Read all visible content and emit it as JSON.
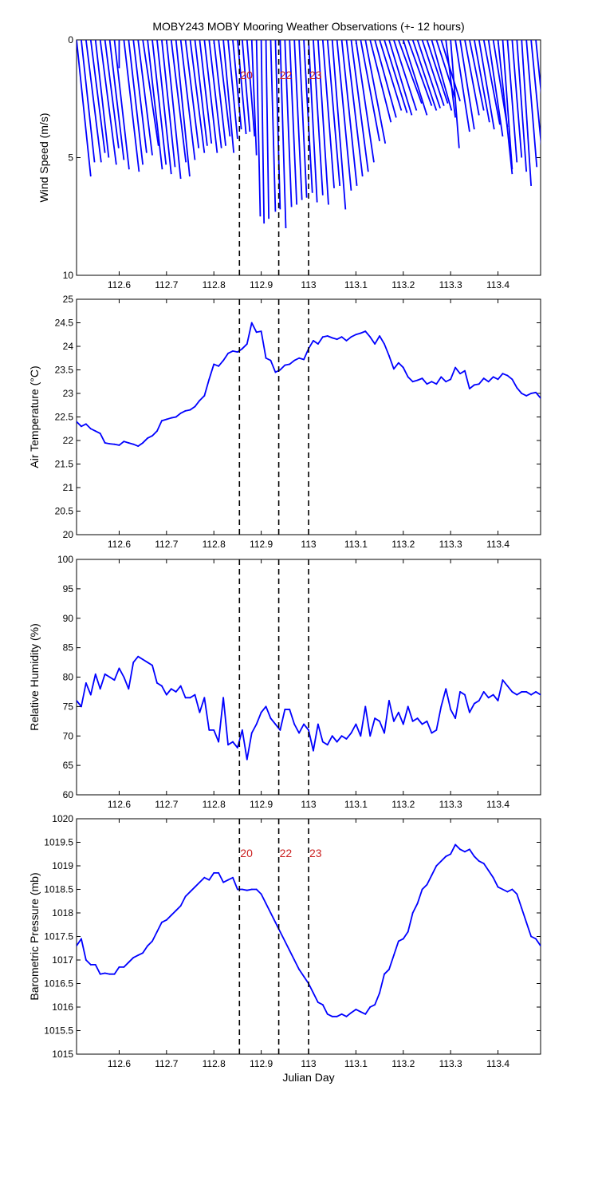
{
  "title": "MOBY243 MOBY Mooring Weather Observations (+- 12 hours)",
  "colors": {
    "series": "#0000ff",
    "event_label": "#cc2222",
    "axes": "#000000"
  },
  "event_lines": {
    "x": [
      112.854,
      112.937,
      113.0
    ],
    "labels": [
      "20",
      "22",
      "23"
    ],
    "style": "dashed"
  },
  "chart_data": [
    {
      "type": "quiver",
      "ylabel": "Wind Speed (m/s)",
      "xlim": [
        112.51,
        113.49
      ],
      "ylim": [
        0,
        10
      ],
      "y_reversed": true,
      "yticks": [
        0,
        5,
        10
      ],
      "xticks": [
        112.6,
        112.7,
        112.8,
        112.9,
        113,
        113.1,
        113.2,
        113.3,
        113.4
      ],
      "xticklabels": [
        "112.6",
        "112.7",
        "112.8",
        "112.9",
        "113",
        "113.1",
        "113.2",
        "113.3",
        "113.4"
      ],
      "event_labels_shown": true,
      "x": [
        112.51,
        112.52,
        112.53,
        112.54,
        112.55,
        112.56,
        112.57,
        112.58,
        112.59,
        112.6,
        112.61,
        112.62,
        112.63,
        112.64,
        112.65,
        112.66,
        112.67,
        112.68,
        112.69,
        112.7,
        112.71,
        112.72,
        112.73,
        112.74,
        112.75,
        112.76,
        112.77,
        112.78,
        112.79,
        112.8,
        112.81,
        112.82,
        112.83,
        112.84,
        112.85,
        112.86,
        112.87,
        112.88,
        112.89,
        112.9,
        112.91,
        112.92,
        112.93,
        112.94,
        112.95,
        112.96,
        112.97,
        112.98,
        112.99,
        113.0,
        113.01,
        113.02,
        113.03,
        113.04,
        113.05,
        113.06,
        113.07,
        113.08,
        113.09,
        113.1,
        113.11,
        113.12,
        113.13,
        113.14,
        113.15,
        113.16,
        113.17,
        113.18,
        113.19,
        113.2,
        113.21,
        113.22,
        113.23,
        113.24,
        113.25,
        113.26,
        113.27,
        113.28,
        113.29,
        113.3,
        113.31,
        113.32,
        113.33,
        113.34,
        113.35,
        113.36,
        113.37,
        113.38,
        113.39,
        113.4,
        113.41,
        113.42,
        113.43,
        113.44,
        113.45,
        113.46,
        113.47,
        113.48
      ],
      "speed": [
        5.8,
        5.2,
        5.2,
        4.8,
        5.0,
        5.3,
        4.6,
        5.1,
        5.5,
        1.2,
        5.6,
        5.3,
        4.8,
        4.9,
        4.5,
        5.5,
        5.3,
        5.7,
        5.4,
        5.9,
        5.2,
        5.8,
        5.1,
        4.6,
        4.8,
        4.5,
        4.4,
        4.8,
        4.6,
        4.5,
        4.1,
        4.8,
        4.2,
        3.8,
        4.0,
        3.9,
        4.1,
        4.9,
        7.5,
        7.8,
        7.6,
        7.3,
        7.2,
        8.0,
        7.1,
        7.0,
        6.8,
        6.7,
        6.5,
        6.9,
        6.6,
        7.0,
        6.3,
        6.2,
        7.2,
        6.4,
        6.2,
        5.8,
        5.6,
        5.2,
        4.3,
        4.4,
        3.5,
        3.3,
        3.0,
        3.1,
        3.2,
        3.0,
        2.7,
        3.2,
        2.8,
        3.0,
        2.9,
        2.8,
        2.7,
        3.0,
        2.5,
        2.6,
        3.3,
        4.6,
        3.9,
        3.8,
        3.2,
        3.0,
        3.5,
        3.8,
        3.6,
        4.1,
        3.7,
        5.7,
        5.5,
        5.2,
        5.0,
        5.6,
        6.2,
        5.4,
        5.0,
        4.8
      ],
      "dx_days": [
        0.03,
        0.028,
        0.032,
        0.03,
        0.028,
        0.034,
        0.029,
        0.03,
        0.031,
        0.0,
        0.032,
        0.03,
        0.028,
        0.03,
        0.033,
        0.031,
        0.029,
        0.03,
        0.028,
        0.03,
        0.031,
        0.029,
        0.03,
        0.028,
        0.03,
        0.026,
        0.025,
        0.027,
        0.026,
        0.025,
        0.024,
        0.022,
        0.02,
        0.018,
        0.018,
        0.016,
        0.016,
        0.01,
        0.008,
        0.006,
        0.006,
        0.01,
        0.01,
        0.012,
        0.014,
        0.015,
        0.016,
        0.016,
        0.018,
        0.018,
        0.02,
        0.022,
        0.024,
        0.026,
        0.028,
        0.03,
        0.032,
        0.034,
        0.036,
        0.038,
        0.04,
        0.042,
        0.044,
        0.045,
        0.046,
        0.048,
        0.048,
        0.048,
        0.049,
        0.05,
        0.05,
        0.05,
        0.048,
        0.046,
        0.044,
        0.042,
        0.04,
        0.04,
        0.02,
        0.018,
        0.03,
        0.03,
        0.03,
        0.03,
        0.032,
        0.032,
        0.034,
        0.03,
        0.03,
        0.03,
        0.02,
        0.02,
        0.02,
        0.02,
        0.02,
        0.022,
        0.024,
        0.024
      ]
    },
    {
      "type": "line",
      "ylabel": "Air Temperature (°C)",
      "xlim": [
        112.51,
        113.49
      ],
      "ylim": [
        20,
        25
      ],
      "yticks": [
        20,
        20.5,
        21,
        21.5,
        22,
        22.5,
        23,
        23.5,
        24,
        24.5,
        25
      ],
      "xticks": [
        112.6,
        112.7,
        112.8,
        112.9,
        113,
        113.1,
        113.2,
        113.3,
        113.4
      ],
      "xticklabels": [
        "112.6",
        "112.7",
        "112.8",
        "112.9",
        "113",
        "113.1",
        "113.2",
        "113.3",
        "113.4"
      ],
      "x": [
        112.51,
        112.52,
        112.53,
        112.54,
        112.55,
        112.56,
        112.57,
        112.58,
        112.59,
        112.6,
        112.61,
        112.62,
        112.63,
        112.64,
        112.65,
        112.66,
        112.67,
        112.68,
        112.69,
        112.7,
        112.71,
        112.72,
        112.73,
        112.74,
        112.75,
        112.76,
        112.77,
        112.78,
        112.79,
        112.8,
        112.81,
        112.82,
        112.83,
        112.84,
        112.85,
        112.86,
        112.87,
        112.88,
        112.89,
        112.9,
        112.91,
        112.92,
        112.93,
        112.94,
        112.95,
        112.96,
        112.97,
        112.98,
        112.99,
        113.0,
        113.01,
        113.02,
        113.03,
        113.04,
        113.05,
        113.06,
        113.07,
        113.08,
        113.09,
        113.1,
        113.11,
        113.12,
        113.13,
        113.14,
        113.15,
        113.16,
        113.17,
        113.18,
        113.19,
        113.2,
        113.21,
        113.22,
        113.23,
        113.24,
        113.25,
        113.26,
        113.27,
        113.28,
        113.29,
        113.3,
        113.31,
        113.32,
        113.33,
        113.34,
        113.35,
        113.36,
        113.37,
        113.38,
        113.39,
        113.4,
        113.41,
        113.42,
        113.43,
        113.44,
        113.45,
        113.46,
        113.47,
        113.48,
        113.49
      ],
      "y": [
        22.4,
        22.3,
        22.35,
        22.25,
        22.2,
        22.15,
        21.95,
        21.93,
        21.92,
        21.9,
        21.98,
        21.95,
        21.92,
        21.88,
        21.95,
        22.05,
        22.1,
        22.2,
        22.42,
        22.45,
        22.48,
        22.5,
        22.58,
        22.63,
        22.65,
        22.72,
        22.85,
        22.95,
        23.3,
        23.62,
        23.58,
        23.7,
        23.85,
        23.9,
        23.88,
        23.95,
        24.05,
        24.5,
        24.3,
        24.32,
        23.75,
        23.7,
        23.45,
        23.5,
        23.6,
        23.62,
        23.7,
        23.75,
        23.72,
        23.95,
        24.12,
        24.05,
        24.2,
        24.22,
        24.18,
        24.15,
        24.2,
        24.12,
        24.2,
        24.25,
        24.28,
        24.32,
        24.2,
        24.05,
        24.22,
        24.05,
        23.8,
        23.52,
        23.65,
        23.55,
        23.35,
        23.25,
        23.28,
        23.32,
        23.2,
        23.25,
        23.2,
        23.35,
        23.25,
        23.3,
        23.55,
        23.42,
        23.48,
        23.1,
        23.18,
        23.2,
        23.32,
        23.25,
        23.35,
        23.3,
        23.42,
        23.38,
        23.3,
        23.12,
        23.0,
        22.95,
        23.0,
        23.02,
        22.9
      ]
    },
    {
      "type": "line",
      "ylabel": "Relative Humidity (%)",
      "xlim": [
        112.51,
        113.49
      ],
      "ylim": [
        60,
        100
      ],
      "yticks": [
        60,
        65,
        70,
        75,
        80,
        85,
        90,
        95,
        100
      ],
      "xticks": [
        112.6,
        112.7,
        112.8,
        112.9,
        113,
        113.1,
        113.2,
        113.3,
        113.4
      ],
      "xticklabels": [
        "112.6",
        "112.7",
        "112.8",
        "112.9",
        "113",
        "113.1",
        "113.2",
        "113.3",
        "113.4"
      ],
      "x": [
        112.51,
        112.52,
        112.53,
        112.54,
        112.55,
        112.56,
        112.57,
        112.58,
        112.59,
        112.6,
        112.61,
        112.62,
        112.63,
        112.64,
        112.65,
        112.66,
        112.67,
        112.68,
        112.69,
        112.7,
        112.71,
        112.72,
        112.73,
        112.74,
        112.75,
        112.76,
        112.77,
        112.78,
        112.79,
        112.8,
        112.81,
        112.82,
        112.83,
        112.84,
        112.85,
        112.86,
        112.87,
        112.88,
        112.89,
        112.9,
        112.91,
        112.92,
        112.93,
        112.94,
        112.95,
        112.96,
        112.97,
        112.98,
        112.99,
        113.0,
        113.01,
        113.02,
        113.03,
        113.04,
        113.05,
        113.06,
        113.07,
        113.08,
        113.09,
        113.1,
        113.11,
        113.12,
        113.13,
        113.14,
        113.15,
        113.16,
        113.17,
        113.18,
        113.19,
        113.2,
        113.21,
        113.22,
        113.23,
        113.24,
        113.25,
        113.26,
        113.27,
        113.28,
        113.29,
        113.3,
        113.31,
        113.32,
        113.33,
        113.34,
        113.35,
        113.36,
        113.37,
        113.38,
        113.39,
        113.4,
        113.41,
        113.42,
        113.43,
        113.44,
        113.45,
        113.46,
        113.47,
        113.48,
        113.49
      ],
      "y": [
        76,
        75,
        79,
        77,
        80.5,
        78,
        80.5,
        80,
        79.5,
        81.5,
        80,
        78,
        82.5,
        83.5,
        83,
        82.5,
        82,
        79,
        78.5,
        77,
        78,
        77.5,
        78.5,
        76.5,
        76.5,
        77,
        74,
        76.5,
        71,
        71,
        69,
        76.5,
        68.5,
        69,
        68,
        71,
        66,
        70.5,
        72,
        74,
        75,
        73,
        72,
        71,
        74.5,
        74.5,
        72,
        70.5,
        72,
        71,
        67.5,
        72,
        69,
        68.5,
        70,
        69,
        70,
        69.5,
        70.5,
        72,
        70,
        75,
        70,
        73,
        72.5,
        70.5,
        76,
        72.5,
        74,
        72,
        75,
        72.5,
        73,
        72,
        72.5,
        70.5,
        71,
        75,
        78,
        74.5,
        73,
        77.5,
        77,
        74,
        75.5,
        76,
        77.5,
        76.5,
        77,
        76,
        79.5,
        78.5,
        77.5,
        77,
        77.5,
        77.5,
        77,
        77.5,
        77
      ]
    },
    {
      "type": "line",
      "ylabel": "Barometric Pressure (mb)",
      "xlabel": "Julian Day",
      "xlim": [
        112.51,
        113.49
      ],
      "ylim": [
        1015,
        1020
      ],
      "yticks": [
        1015,
        1015.5,
        1016,
        1016.5,
        1017,
        1017.5,
        1018,
        1018.5,
        1019,
        1019.5,
        1020
      ],
      "xticks": [
        112.6,
        112.7,
        112.8,
        112.9,
        113,
        113.1,
        113.2,
        113.3,
        113.4
      ],
      "xticklabels": [
        "112.6",
        "112.7",
        "112.8",
        "112.9",
        "113",
        "113.1",
        "113.2",
        "113.3",
        "113.4"
      ],
      "event_labels_shown": true,
      "x": [
        112.51,
        112.52,
        112.53,
        112.54,
        112.55,
        112.56,
        112.57,
        112.58,
        112.59,
        112.6,
        112.61,
        112.62,
        112.63,
        112.64,
        112.65,
        112.66,
        112.67,
        112.68,
        112.69,
        112.7,
        112.71,
        112.72,
        112.73,
        112.74,
        112.75,
        112.76,
        112.77,
        112.78,
        112.79,
        112.8,
        112.81,
        112.82,
        112.83,
        112.84,
        112.85,
        112.86,
        112.87,
        112.88,
        112.89,
        112.9,
        112.91,
        112.92,
        112.93,
        112.94,
        112.95,
        112.96,
        112.97,
        112.98,
        112.99,
        113.0,
        113.01,
        113.02,
        113.03,
        113.04,
        113.05,
        113.06,
        113.07,
        113.08,
        113.09,
        113.1,
        113.11,
        113.12,
        113.13,
        113.14,
        113.15,
        113.16,
        113.17,
        113.18,
        113.19,
        113.2,
        113.21,
        113.22,
        113.23,
        113.24,
        113.25,
        113.26,
        113.27,
        113.28,
        113.29,
        113.3,
        113.31,
        113.32,
        113.33,
        113.34,
        113.35,
        113.36,
        113.37,
        113.38,
        113.39,
        113.4,
        113.41,
        113.42,
        113.43,
        113.44,
        113.45,
        113.46,
        113.47,
        113.48,
        113.49
      ],
      "y": [
        1017.3,
        1017.45,
        1017.0,
        1016.9,
        1016.9,
        1016.7,
        1016.72,
        1016.7,
        1016.7,
        1016.85,
        1016.85,
        1016.95,
        1017.05,
        1017.1,
        1017.15,
        1017.3,
        1017.4,
        1017.6,
        1017.8,
        1017.85,
        1017.95,
        1018.05,
        1018.15,
        1018.35,
        1018.45,
        1018.55,
        1018.65,
        1018.75,
        1018.7,
        1018.85,
        1018.85,
        1018.65,
        1018.7,
        1018.75,
        1018.5,
        1018.5,
        1018.48,
        1018.5,
        1018.5,
        1018.4,
        1018.2,
        1018.0,
        1017.8,
        1017.6,
        1017.4,
        1017.2,
        1017.0,
        1016.8,
        1016.65,
        1016.5,
        1016.3,
        1016.1,
        1016.05,
        1015.85,
        1015.8,
        1015.8,
        1015.85,
        1015.8,
        1015.88,
        1015.95,
        1015.9,
        1015.85,
        1016.0,
        1016.05,
        1016.3,
        1016.7,
        1016.8,
        1017.1,
        1017.4,
        1017.45,
        1017.6,
        1018.0,
        1018.2,
        1018.5,
        1018.6,
        1018.8,
        1019.0,
        1019.1,
        1019.2,
        1019.25,
        1019.45,
        1019.35,
        1019.3,
        1019.35,
        1019.2,
        1019.1,
        1019.05,
        1018.9,
        1018.75,
        1018.55,
        1018.5,
        1018.45,
        1018.5,
        1018.4,
        1018.1,
        1017.8,
        1017.5,
        1017.45,
        1017.3
      ]
    }
  ]
}
